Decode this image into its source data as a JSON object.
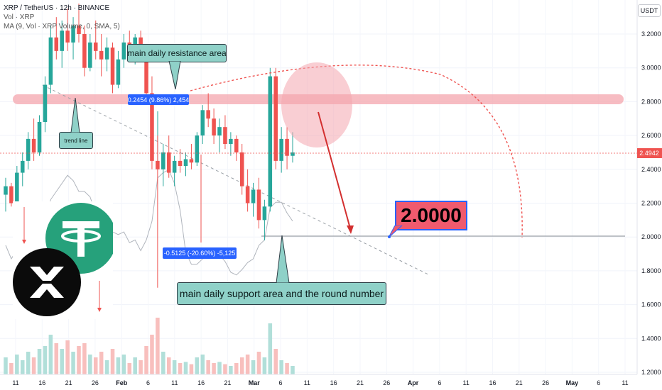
{
  "legend": {
    "symbol_line": "XRP / TetherUS · 12h · BINANCE",
    "vol_line": "Vol · XRP",
    "ma_line": "MA (9, Vol · XRP Volume, 0, SMA, 5)"
  },
  "currency_badge": "USDT",
  "annotations": {
    "resistance_label": "main daily resistance area",
    "trend_label": "trend line",
    "support_label": "main daily support area and the round number",
    "gain_callout": "0.2454 (9.86%) 2,454",
    "loss_callout": "-0.5125 (-20.60%) -5,125",
    "target_label": "2.0000"
  },
  "colors": {
    "up": "#26a69a",
    "down": "#ef5350",
    "resistance_zone": "#f4a6ae",
    "note_fill": "#8fd1c8",
    "callout_blue": "#2962ff",
    "target_fill": "#f05a6e"
  },
  "chart_data": {
    "type": "candlestick",
    "exchange": "BINANCE",
    "pair": "XRP / TetherUS",
    "interval": "12h",
    "y_axis": {
      "ticks": [
        "3.2000",
        "3.0000",
        "2.8000",
        "2.6000",
        "2.4000",
        "2.2000",
        "2.0000",
        "1.8000",
        "1.6000",
        "1.4000",
        "1.2000"
      ],
      "range": [
        1.17,
        3.37
      ]
    },
    "x_axis": {
      "ticks": [
        "11",
        "16",
        "21",
        "26",
        "Feb",
        "6",
        "11",
        "16",
        "21",
        "Mar",
        "6",
        "11",
        "16",
        "21",
        "26",
        "Apr",
        "6",
        "11",
        "16",
        "21",
        "26",
        "May",
        "6",
        "11"
      ]
    },
    "current_price": "2.4942",
    "levels": {
      "resistance": 2.82,
      "support": 2.01
    },
    "candles": [
      [
        2.25,
        2.35,
        2.15,
        2.3
      ],
      [
        2.3,
        2.32,
        2.18,
        2.2
      ],
      [
        2.2,
        2.42,
        2.17,
        2.38
      ],
      [
        2.38,
        2.5,
        2.3,
        2.45
      ],
      [
        2.45,
        2.62,
        2.4,
        2.58
      ],
      [
        2.58,
        2.7,
        2.45,
        2.5
      ],
      [
        2.5,
        2.72,
        2.48,
        2.68
      ],
      [
        2.68,
        2.95,
        2.62,
        2.9
      ],
      [
        2.9,
        3.25,
        2.85,
        3.18
      ],
      [
        3.18,
        3.3,
        3.05,
        3.1
      ],
      [
        3.1,
        3.28,
        3.0,
        3.22
      ],
      [
        3.22,
        3.35,
        3.1,
        3.15
      ],
      [
        3.15,
        3.3,
        3.05,
        3.25
      ],
      [
        3.25,
        3.38,
        3.15,
        3.2
      ],
      [
        3.2,
        3.25,
        2.95,
        3.0
      ],
      [
        3.0,
        3.2,
        2.98,
        3.15
      ],
      [
        3.15,
        3.28,
        3.05,
        3.1
      ],
      [
        3.1,
        3.2,
        2.95,
        3.05
      ],
      [
        3.05,
        3.18,
        2.98,
        3.12
      ],
      [
        3.12,
        3.15,
        2.85,
        2.9
      ],
      [
        2.9,
        3.1,
        2.88,
        3.05
      ],
      [
        3.05,
        3.2,
        3.0,
        3.15
      ],
      [
        3.15,
        3.22,
        3.05,
        3.1
      ],
      [
        3.1,
        3.2,
        3.02,
        3.18
      ],
      [
        3.18,
        3.22,
        3.05,
        3.08
      ],
      [
        3.08,
        3.12,
        2.8,
        2.85
      ],
      [
        2.85,
        2.95,
        2.4,
        2.45
      ],
      [
        2.45,
        2.6,
        1.7,
        2.4
      ],
      [
        2.4,
        2.55,
        2.3,
        2.5
      ],
      [
        2.5,
        2.6,
        2.35,
        2.38
      ],
      [
        2.38,
        2.48,
        2.3,
        2.45
      ],
      [
        2.45,
        2.52,
        2.38,
        2.42
      ],
      [
        2.42,
        2.5,
        2.36,
        2.46
      ],
      [
        2.46,
        2.55,
        2.4,
        2.44
      ],
      [
        2.44,
        2.62,
        2.42,
        2.6
      ],
      [
        2.6,
        2.78,
        2.55,
        2.75
      ],
      [
        2.75,
        2.85,
        2.65,
        2.7
      ],
      [
        2.7,
        2.76,
        2.55,
        2.6
      ],
      [
        2.6,
        2.7,
        2.5,
        2.65
      ],
      [
        2.65,
        2.72,
        2.52,
        2.55
      ],
      [
        2.55,
        2.62,
        2.48,
        2.58
      ],
      [
        2.58,
        2.6,
        2.45,
        2.5
      ],
      [
        2.5,
        2.55,
        2.25,
        2.3
      ],
      [
        2.3,
        2.4,
        2.15,
        2.2
      ],
      [
        2.2,
        2.32,
        2.12,
        2.28
      ],
      [
        2.28,
        2.35,
        2.05,
        2.1
      ],
      [
        2.1,
        2.22,
        1.98,
        2.18
      ],
      [
        2.18,
        3.0,
        2.15,
        2.95
      ],
      [
        2.95,
        3.0,
        2.4,
        2.45
      ],
      [
        2.45,
        2.65,
        2.38,
        2.58
      ],
      [
        2.58,
        2.65,
        2.4,
        2.48
      ],
      [
        2.48,
        2.62,
        2.44,
        2.5
      ]
    ],
    "volume_relative": [
      0.3,
      0.2,
      0.35,
      0.25,
      0.4,
      0.3,
      0.45,
      0.5,
      0.7,
      0.55,
      0.45,
      0.6,
      0.4,
      0.5,
      0.55,
      0.35,
      0.3,
      0.4,
      0.25,
      0.45,
      0.3,
      0.35,
      0.2,
      0.3,
      0.25,
      0.5,
      0.7,
      1.0,
      0.4,
      0.3,
      0.25,
      0.2,
      0.22,
      0.18,
      0.3,
      0.35,
      0.25,
      0.2,
      0.22,
      0.18,
      0.15,
      0.2,
      0.3,
      0.35,
      0.25,
      0.4,
      0.3,
      0.9,
      0.45,
      0.25,
      0.2,
      0.15
    ]
  }
}
